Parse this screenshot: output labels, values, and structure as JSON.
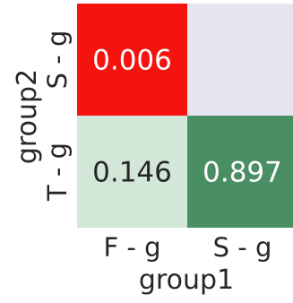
{
  "chart_data": {
    "type": "heatmap",
    "xlabel": "group1",
    "ylabel": "group2",
    "x_categories": [
      "F - g",
      "S - g"
    ],
    "y_categories": [
      "S - g",
      "T - g"
    ],
    "cells": [
      {
        "x": "F - g",
        "y": "S - g",
        "value": 0.006,
        "label": "0.006",
        "color": "#f5130f"
      },
      {
        "x": "S - g",
        "y": "S - g",
        "value": null,
        "label": "",
        "color": "#e6e6f0"
      },
      {
        "x": "F - g",
        "y": "T - g",
        "value": 0.146,
        "label": "0.146",
        "color": "#d3e7d9"
      },
      {
        "x": "S - g",
        "y": "T - g",
        "value": 0.897,
        "label": "0.897",
        "color": "#4a8e64"
      }
    ]
  }
}
